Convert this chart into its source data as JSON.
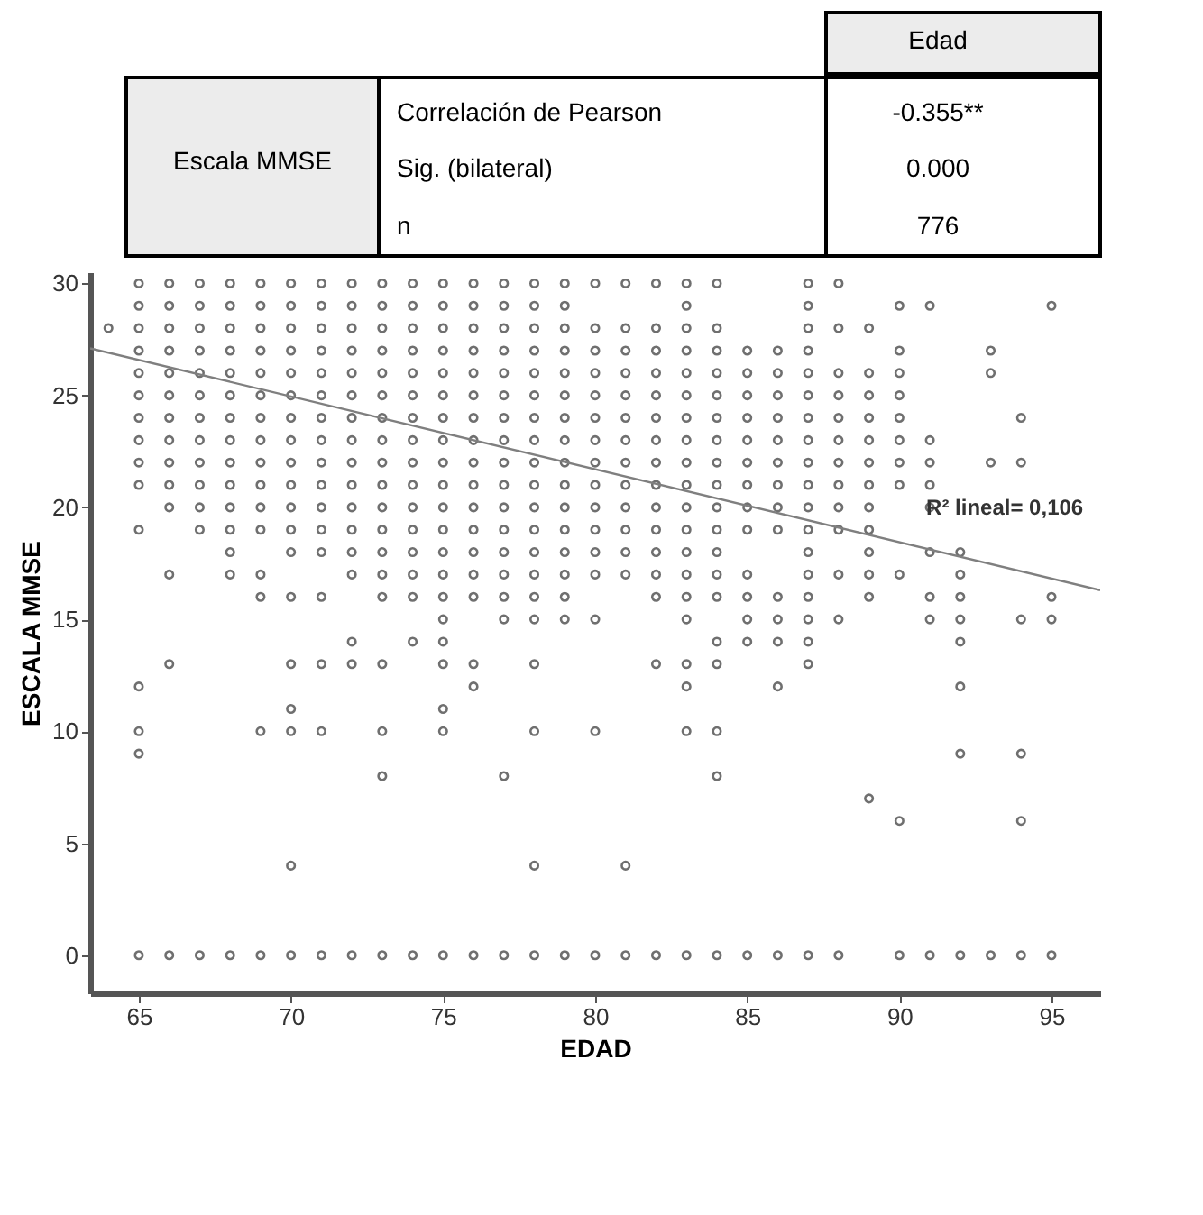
{
  "chart_data": [
    {
      "type": "other",
      "annotations": [
        "Edad",
        "Escala MMSE",
        "Correlación de Pearson",
        "-0.355**",
        "Sig. (bilateral)",
        "0.000",
        "n",
        "776"
      ]
    },
    {
      "type": "scatter",
      "xlabel": "EDAD",
      "ylabel": "ESCALA MMSE",
      "xlim": [
        63.4,
        96.6
      ],
      "ylim": [
        -1.7,
        30.5
      ],
      "xticks": [
        65,
        70,
        75,
        80,
        85,
        90,
        95
      ],
      "yticks": [
        0,
        5,
        10,
        15,
        20,
        25,
        30
      ],
      "grid": false,
      "marker": "circle",
      "annotations": [
        {
          "text": "R² lineal= 0,106",
          "x": 91,
          "y": 20
        }
      ],
      "series": [
        {
          "type": "scatter",
          "color": "#333333",
          "x": [
            64,
            65,
            65,
            65,
            65,
            65,
            65,
            65,
            65,
            65,
            65,
            65,
            65,
            65,
            65,
            65,
            66,
            66,
            66,
            66,
            66,
            66,
            66,
            66,
            66,
            66,
            66,
            66,
            66,
            66,
            67,
            67,
            67,
            67,
            67,
            67,
            67,
            67,
            67,
            67,
            67,
            67,
            67,
            68,
            68,
            68,
            68,
            68,
            68,
            68,
            68,
            68,
            68,
            68,
            68,
            68,
            68,
            68,
            69,
            69,
            69,
            69,
            69,
            69,
            69,
            69,
            69,
            69,
            69,
            69,
            69,
            69,
            69,
            69,
            70,
            70,
            70,
            70,
            70,
            70,
            70,
            70,
            70,
            70,
            70,
            70,
            70,
            70,
            70,
            70,
            70,
            70,
            70,
            71,
            71,
            71,
            71,
            71,
            71,
            71,
            71,
            71,
            71,
            71,
            71,
            71,
            71,
            71,
            71,
            71,
            72,
            72,
            72,
            72,
            72,
            72,
            72,
            72,
            72,
            72,
            72,
            72,
            72,
            72,
            72,
            72,
            72,
            73,
            73,
            73,
            73,
            73,
            73,
            73,
            73,
            73,
            73,
            73,
            73,
            73,
            73,
            73,
            73,
            73,
            73,
            73,
            74,
            74,
            74,
            74,
            74,
            74,
            74,
            74,
            74,
            74,
            74,
            74,
            74,
            74,
            74,
            74,
            74,
            75,
            75,
            75,
            75,
            75,
            75,
            75,
            75,
            75,
            75,
            75,
            75,
            75,
            75,
            75,
            75,
            75,
            75,
            75,
            75,
            75,
            76,
            76,
            76,
            76,
            76,
            76,
            76,
            76,
            76,
            76,
            76,
            76,
            76,
            76,
            76,
            76,
            76,
            76,
            77,
            77,
            77,
            77,
            77,
            77,
            77,
            77,
            77,
            77,
            77,
            77,
            77,
            77,
            77,
            77,
            77,
            77,
            78,
            78,
            78,
            78,
            78,
            78,
            78,
            78,
            78,
            78,
            78,
            78,
            78,
            78,
            78,
            78,
            78,
            78,
            78,
            78,
            79,
            79,
            79,
            79,
            79,
            79,
            79,
            79,
            79,
            79,
            79,
            79,
            79,
            79,
            79,
            79,
            79,
            80,
            80,
            80,
            80,
            80,
            80,
            80,
            80,
            80,
            80,
            80,
            80,
            80,
            80,
            80,
            80,
            81,
            81,
            81,
            81,
            81,
            81,
            81,
            81,
            81,
            81,
            81,
            81,
            81,
            81,
            81,
            82,
            82,
            82,
            82,
            82,
            82,
            82,
            82,
            82,
            82,
            82,
            82,
            82,
            82,
            82,
            82,
            83,
            83,
            83,
            83,
            83,
            83,
            83,
            83,
            83,
            83,
            83,
            83,
            83,
            83,
            83,
            83,
            83,
            83,
            83,
            83,
            84,
            84,
            84,
            84,
            84,
            84,
            84,
            84,
            84,
            84,
            84,
            84,
            84,
            84,
            84,
            84,
            84,
            84,
            84,
            85,
            85,
            85,
            85,
            85,
            85,
            85,
            85,
            85,
            85,
            85,
            85,
            85,
            85,
            86,
            86,
            86,
            86,
            86,
            86,
            86,
            86,
            86,
            86,
            86,
            86,
            86,
            86,
            87,
            87,
            87,
            87,
            87,
            87,
            87,
            87,
            87,
            87,
            87,
            87,
            87,
            87,
            87,
            87,
            87,
            87,
            87,
            88,
            88,
            88,
            88,
            88,
            88,
            88,
            88,
            88,
            88,
            88,
            88,
            88,
            89,
            89,
            89,
            89,
            89,
            89,
            89,
            89,
            89,
            89,
            89,
            89,
            89,
            90,
            90,
            90,
            90,
            90,
            90,
            90,
            90,
            90,
            90,
            90,
            91,
            91,
            91,
            91,
            91,
            91,
            91,
            91,
            91,
            92,
            92,
            92,
            92,
            92,
            92,
            92,
            92,
            93,
            93,
            93,
            93,
            94,
            94,
            94,
            94,
            94,
            94,
            95,
            95,
            95,
            95
          ],
          "values": [
            28,
            0,
            9,
            10,
            12,
            19,
            21,
            22,
            23,
            24,
            25,
            26,
            27,
            28,
            29,
            30,
            0,
            13,
            17,
            20,
            21,
            22,
            23,
            24,
            25,
            26,
            27,
            28,
            29,
            30,
            0,
            19,
            20,
            21,
            22,
            23,
            24,
            25,
            26,
            27,
            28,
            29,
            30,
            0,
            17,
            18,
            19,
            20,
            21,
            22,
            23,
            24,
            25,
            26,
            27,
            28,
            29,
            30,
            0,
            10,
            16,
            17,
            19,
            20,
            21,
            22,
            23,
            24,
            25,
            26,
            27,
            28,
            29,
            30,
            0,
            4,
            10,
            11,
            13,
            16,
            18,
            19,
            20,
            21,
            22,
            23,
            24,
            25,
            26,
            27,
            28,
            29,
            30,
            0,
            10,
            13,
            16,
            18,
            19,
            20,
            21,
            22,
            23,
            24,
            25,
            26,
            27,
            28,
            29,
            30,
            0,
            13,
            14,
            17,
            18,
            19,
            20,
            21,
            22,
            23,
            24,
            25,
            26,
            27,
            28,
            29,
            30,
            0,
            8,
            10,
            13,
            16,
            17,
            18,
            19,
            20,
            21,
            22,
            23,
            24,
            25,
            26,
            27,
            28,
            29,
            30,
            0,
            14,
            16,
            17,
            18,
            19,
            20,
            21,
            22,
            23,
            24,
            25,
            26,
            27,
            28,
            29,
            30,
            0,
            10,
            11,
            13,
            14,
            15,
            16,
            17,
            18,
            19,
            20,
            21,
            22,
            23,
            24,
            25,
            26,
            27,
            28,
            29,
            30,
            0,
            12,
            13,
            16,
            17,
            18,
            19,
            20,
            21,
            22,
            23,
            24,
            25,
            26,
            27,
            28,
            29,
            30,
            0,
            8,
            15,
            16,
            17,
            18,
            19,
            20,
            21,
            22,
            23,
            24,
            25,
            26,
            27,
            28,
            29,
            30,
            0,
            4,
            10,
            13,
            15,
            16,
            17,
            18,
            19,
            20,
            21,
            22,
            23,
            24,
            25,
            26,
            27,
            28,
            29,
            30,
            0,
            15,
            16,
            17,
            18,
            19,
            20,
            21,
            22,
            23,
            24,
            25,
            26,
            27,
            28,
            29,
            30,
            0,
            10,
            15,
            17,
            18,
            19,
            20,
            21,
            22,
            23,
            24,
            25,
            26,
            27,
            28,
            30,
            0,
            4,
            17,
            18,
            19,
            20,
            21,
            22,
            23,
            24,
            25,
            26,
            27,
            28,
            30,
            0,
            13,
            16,
            17,
            18,
            19,
            20,
            21,
            22,
            23,
            24,
            25,
            26,
            27,
            28,
            30,
            0,
            10,
            12,
            13,
            15,
            16,
            17,
            18,
            19,
            20,
            21,
            22,
            23,
            24,
            25,
            26,
            27,
            28,
            29,
            30,
            0,
            8,
            10,
            13,
            14,
            16,
            17,
            18,
            19,
            20,
            21,
            22,
            23,
            24,
            25,
            26,
            27,
            28,
            30,
            0,
            14,
            15,
            16,
            17,
            19,
            20,
            21,
            22,
            23,
            24,
            25,
            26,
            27,
            0,
            12,
            14,
            15,
            16,
            19,
            20,
            21,
            22,
            23,
            24,
            25,
            26,
            27,
            0,
            13,
            14,
            15,
            16,
            17,
            18,
            19,
            20,
            21,
            22,
            23,
            24,
            25,
            26,
            27,
            28,
            29,
            30,
            0,
            15,
            17,
            19,
            20,
            21,
            22,
            23,
            24,
            25,
            26,
            28,
            30,
            7,
            16,
            17,
            18,
            19,
            20,
            21,
            22,
            23,
            24,
            25,
            26,
            28,
            0,
            6,
            17,
            21,
            22,
            23,
            24,
            25,
            26,
            27,
            29,
            0,
            15,
            16,
            18,
            20,
            21,
            22,
            23,
            29,
            0,
            9,
            12,
            14,
            15,
            16,
            17,
            18,
            0,
            22,
            26,
            27,
            0,
            6,
            9,
            15,
            22,
            24,
            0,
            15,
            16,
            29
          ]
        },
        {
          "type": "line",
          "color": "#7f7f7f",
          "marker": "none",
          "line_style": "solid",
          "x": [
            63.4,
            96.6
          ],
          "values": [
            27.1,
            16.3
          ]
        }
      ]
    }
  ]
}
